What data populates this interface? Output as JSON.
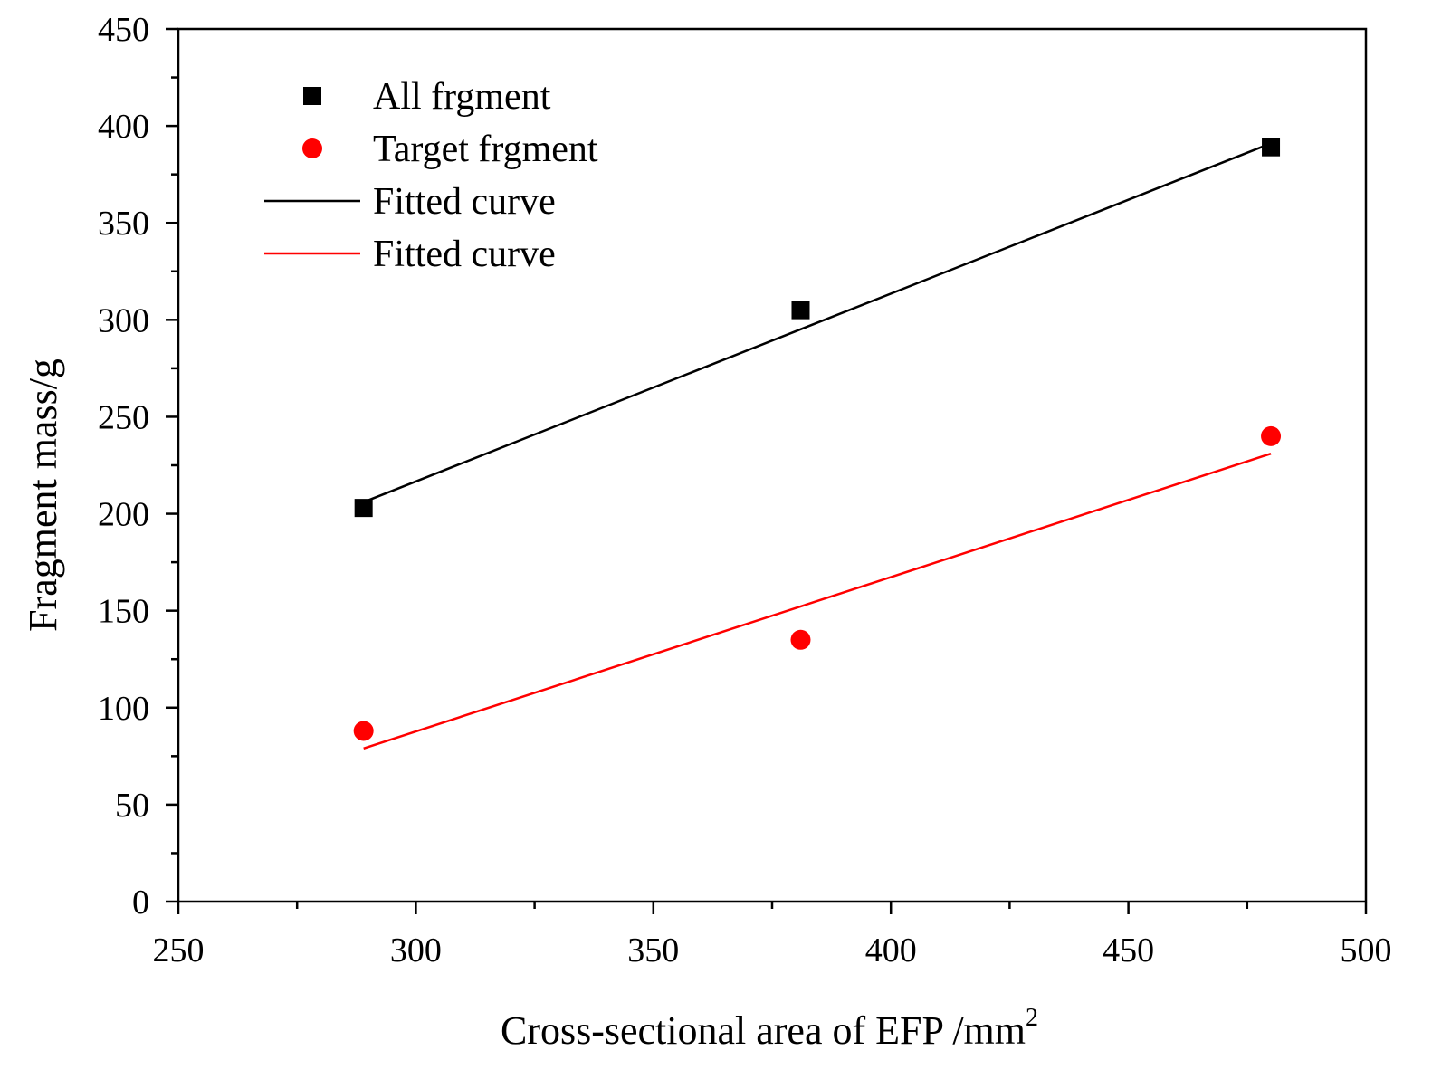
{
  "chart_data": {
    "type": "scatter",
    "title": "",
    "xlabel": "Cross-sectional area of EFP /mm",
    "xlabel_superscript": "2",
    "ylabel": "Fragment mass/g",
    "xlim": [
      250,
      500
    ],
    "ylim": [
      0,
      450
    ],
    "x_ticks": [
      250,
      300,
      350,
      400,
      450,
      500
    ],
    "y_ticks": [
      0,
      50,
      100,
      150,
      200,
      250,
      300,
      350,
      400,
      450
    ],
    "grid": false,
    "legend_position": "top-left",
    "series": [
      {
        "name": "All frgment",
        "kind": "scatter",
        "marker": "square",
        "color": "#000000",
        "x": [
          289,
          381,
          480
        ],
        "y": [
          203,
          305,
          389
        ]
      },
      {
        "name": "Target frgment",
        "kind": "scatter",
        "marker": "circle",
        "color": "#ff0000",
        "x": [
          289,
          381,
          480
        ],
        "y": [
          88,
          135,
          240
        ]
      },
      {
        "name": "Fitted curve",
        "kind": "line",
        "color": "#000000",
        "x": [
          289,
          480
        ],
        "y": [
          206,
          391
        ]
      },
      {
        "name": "Fitted curve",
        "kind": "line",
        "color": "#ff0000",
        "x": [
          289,
          480
        ],
        "y": [
          79,
          231
        ]
      }
    ]
  }
}
